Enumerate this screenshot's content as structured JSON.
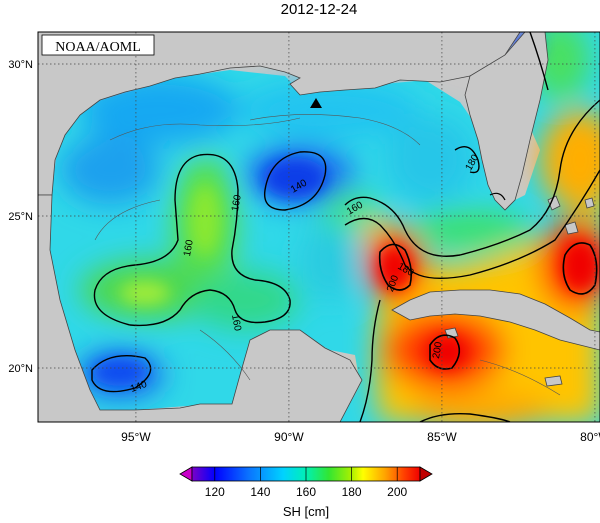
{
  "title": "2012-12-24",
  "credit": "NOAA/AOML",
  "lat_ticks": [
    {
      "label": "30°N",
      "value": 30
    },
    {
      "label": "25°N",
      "value": 25
    },
    {
      "label": "20°N",
      "value": 20
    }
  ],
  "lon_ticks": [
    {
      "label": "95°W",
      "value": -95
    },
    {
      "label": "90°W",
      "value": -90
    },
    {
      "label": "85°W",
      "value": -85
    },
    {
      "label": "80°W",
      "value": -80
    }
  ],
  "contour_labels": [
    "140",
    "140",
    "160",
    "160",
    "160",
    "160",
    "180",
    "180",
    "200",
    "200"
  ],
  "colorbar": {
    "label": "SH [cm]",
    "ticks": [
      "120",
      "140",
      "160",
      "180",
      "200"
    ],
    "min": 110,
    "max": 210,
    "colors": [
      "#7a00c8",
      "#0000ff",
      "#0a74ff",
      "#00d2ff",
      "#00f0b4",
      "#32e632",
      "#aaf000",
      "#ffff00",
      "#ffa000",
      "#ff4000",
      "#f00000"
    ]
  },
  "marker": {
    "name": "triangle",
    "lon": -88.5,
    "lat": 28.8
  }
}
